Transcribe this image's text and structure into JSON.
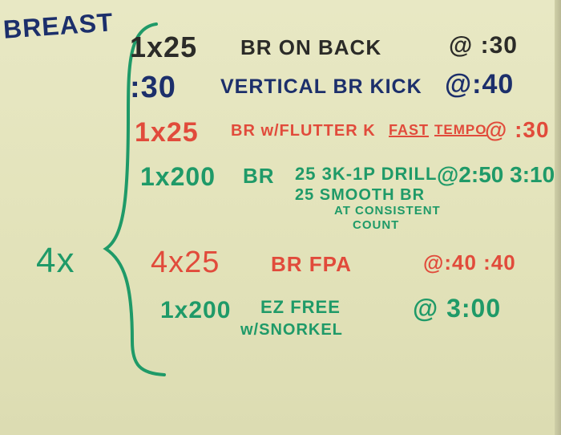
{
  "title": "BREAST",
  "repeat": "4x",
  "colors": {
    "black": "#2b2b28",
    "navy": "#1c2f6b",
    "red": "#e14b3b",
    "green": "#1f9a68",
    "board": "#e3e3bb"
  },
  "lines": {
    "l1": {
      "set": "1x25",
      "desc": "BR ON BACK",
      "interval": "@ :30"
    },
    "l2": {
      "set": ":30",
      "desc": "VERTICAL BR KICK",
      "interval": "@:40"
    },
    "l3": {
      "set": "1x25",
      "desc": "BR w/FLUTTER K",
      "fast": "FAST",
      "tempo": "TEMPO",
      "interval": "@ :30"
    },
    "l4": {
      "set": "1x200",
      "desc": "BR",
      "part1": "25 3K-1P DRILL",
      "interval": "@2:50 3:10",
      "part2": "25 SMOOTH BR",
      "part2b": "AT CONSISTENT",
      "part2c": "COUNT"
    },
    "l5": {
      "set": "4x25",
      "desc": "BR FPA",
      "interval": "@:40 :40"
    },
    "l6": {
      "set": "1x200",
      "desc": "EZ FREE",
      "interval": "@ 3:00",
      "note": "w/SNORKEL"
    }
  }
}
